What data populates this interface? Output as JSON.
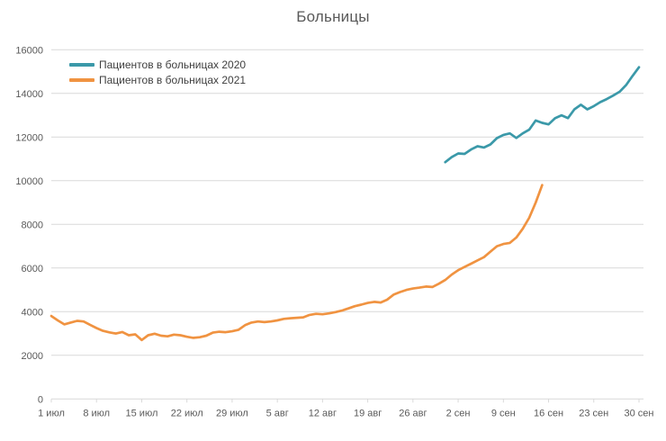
{
  "chart_data": {
    "type": "line",
    "title": "Больницы",
    "xlabel": "",
    "ylabel": "",
    "ylim": [
      0,
      16000
    ],
    "y_ticks": [
      0,
      2000,
      4000,
      6000,
      8000,
      10000,
      12000,
      14000,
      16000
    ],
    "x_tick_labels": [
      "1 июл",
      "8 июл",
      "15 июл",
      "22 июл",
      "29 июл",
      "5 авг",
      "12 авг",
      "19 авг",
      "26 авг",
      "2 сен",
      "9 сен",
      "16 сен",
      "23 сен",
      "30 сен"
    ],
    "x_tick_days": [
      0,
      7,
      14,
      21,
      28,
      35,
      42,
      49,
      56,
      63,
      70,
      77,
      84,
      91
    ],
    "x_unit": "day (0 = 1 июл)",
    "grid": "horizontal",
    "legend_position": "top-left",
    "colors": {
      "grid": "#d9d9d9",
      "axis_label": "#595959",
      "title": "#595959",
      "background": "#ffffff"
    },
    "series": [
      {
        "name": "Пациентов в больницах 2020",
        "color": "#3b99a9",
        "start_day": 61,
        "values": [
          10850,
          11080,
          11250,
          11230,
          11430,
          11580,
          11520,
          11660,
          11950,
          12100,
          12170,
          11960,
          12170,
          12340,
          12760,
          12650,
          12580,
          12860,
          13000,
          12870,
          13270,
          13480,
          13270,
          13420,
          13600,
          13740,
          13900,
          14080,
          14380,
          14800,
          15200
        ]
      },
      {
        "name": "Пациентов в больницах 2021",
        "color": "#f09341",
        "start_day": 0,
        "values": [
          3800,
          3600,
          3420,
          3500,
          3580,
          3550,
          3400,
          3250,
          3120,
          3050,
          3000,
          3070,
          2920,
          2960,
          2700,
          2920,
          2990,
          2900,
          2870,
          2950,
          2920,
          2850,
          2800,
          2830,
          2900,
          3040,
          3080,
          3060,
          3100,
          3170,
          3380,
          3500,
          3550,
          3520,
          3550,
          3600,
          3670,
          3700,
          3720,
          3740,
          3850,
          3900,
          3880,
          3920,
          3980,
          4050,
          4150,
          4250,
          4320,
          4400,
          4450,
          4420,
          4550,
          4780,
          4900,
          5000,
          5060,
          5100,
          5150,
          5130,
          5280,
          5450,
          5700,
          5900,
          6050,
          6200,
          6350,
          6500,
          6750,
          7000,
          7100,
          7150,
          7400,
          7800,
          8300,
          9000,
          9800
        ]
      }
    ]
  }
}
